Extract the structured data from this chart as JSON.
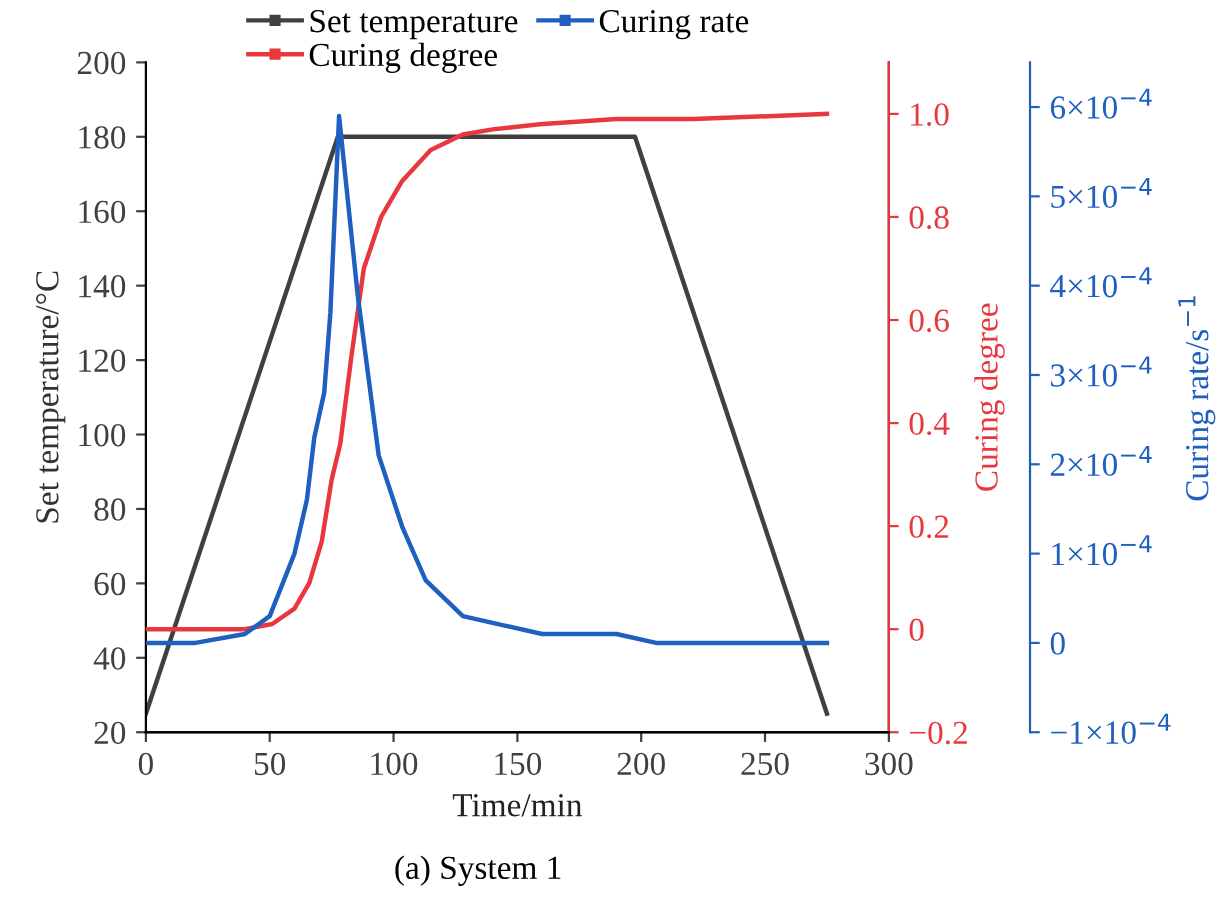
{
  "chart_data": {
    "type": "line",
    "xlabel": "Time/min",
    "ylabel": "Set temperature/°C",
    "y2label": "Curing degree",
    "y3label": "Curing rate/s$^{−1}$",
    "annotations": [
      "(a) System 1"
    ],
    "xlim": [
      0,
      300
    ],
    "xticks": [
      0,
      50,
      100,
      150,
      200,
      250,
      300
    ],
    "ylim": [
      20,
      200
    ],
    "yticks": [
      20,
      40,
      60,
      80,
      100,
      120,
      140,
      160,
      180,
      200
    ],
    "y2lim": [
      -0.2,
      1.1
    ],
    "y2ticks": [
      {
        "value": -0.2,
        "label": "−0.2"
      },
      0,
      0.2,
      0.4,
      0.6,
      0.8,
      {
        "value": 1.0,
        "label": "1.0"
      }
    ],
    "y3lim": [
      -0.0001,
      0.00065
    ],
    "y3ticks": [
      {
        "value": -0.0001,
        "label": "−1×10$^{−4}$"
      },
      0,
      {
        "value": 0.0001,
        "label": "1×10$^{−4}$"
      },
      {
        "value": 0.0002,
        "label": "2×10$^{−4}$"
      },
      {
        "value": 0.0003,
        "label": "3×10$^{−4}$"
      },
      {
        "value": 0.0004,
        "label": "4×10$^{−4}$"
      },
      {
        "value": 0.0005,
        "label": "5×10$^{−4}$"
      },
      {
        "value": 0.0006,
        "label": "6×10$^{−4}$"
      }
    ],
    "grid": false,
    "legend": "top",
    "marker": "none",
    "line_style": "solid",
    "series": [
      {
        "name": "Set temperature",
        "color": "#404040",
        "x": [
          0,
          77.5,
          197.5,
          275
        ],
        "values": [
          25,
          180,
          180,
          25
        ]
      },
      {
        "name": "Curing rate",
        "color": "#1f5fbf",
        "axis": "y3",
        "x": [
          0,
          20,
          40,
          50,
          60,
          65,
          68,
          72,
          74.5,
          78,
          85.5,
          94,
          103.5,
          113,
          128,
          144,
          160,
          190,
          206,
          240,
          275
        ],
        "values": [
          0,
          0,
          1e-05,
          3e-05,
          0.0001,
          0.00016,
          0.00023,
          0.00028,
          0.00037,
          0.00059,
          0.00039,
          0.00021,
          0.00013,
          7e-05,
          3e-05,
          2e-05,
          1e-05,
          1e-05,
          0,
          0,
          0
        ]
      },
      {
        "name": "Curing degree",
        "color": "#e8383d",
        "axis": "y2",
        "x": [
          0,
          40,
          51,
          60,
          66,
          71,
          75,
          78.5,
          83,
          88,
          95,
          103.5,
          115,
          128,
          140,
          159,
          190,
          221,
          275
        ],
        "values": [
          0,
          0,
          0.01,
          0.04,
          0.09,
          0.17,
          0.29,
          0.36,
          0.53,
          0.7,
          0.8,
          0.87,
          0.93,
          0.96,
          0.97,
          0.98,
          0.99,
          0.99,
          1.0
        ]
      }
    ]
  }
}
